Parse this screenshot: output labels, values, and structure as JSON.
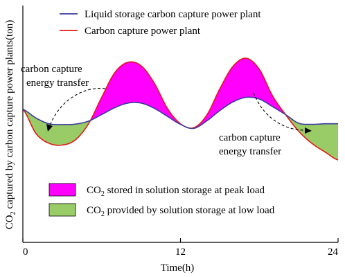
{
  "chart_data": {
    "type": "line",
    "xlabel": "Time(h)",
    "ylabel_prefix": "CO",
    "ylabel_sub": "2",
    "ylabel_rest": " captured by carbon  capture power plants(ton)",
    "xlim": [
      0,
      24
    ],
    "x_ticks": [
      0,
      12,
      24
    ],
    "x_tick_labels": [
      "0",
      "12",
      "24"
    ],
    "series": [
      {
        "name": "Liquid storage carbon capture power plant",
        "color": "#3a3aa0",
        "x": [
          0,
          1,
          2,
          3,
          4,
          5,
          6,
          7,
          8,
          9,
          10,
          11,
          12,
          13,
          14,
          15,
          16,
          17,
          18,
          19,
          20,
          21,
          22,
          23,
          24
        ],
        "y": [
          0.47,
          0.395,
          0.345,
          0.338,
          0.342,
          0.368,
          0.425,
          0.485,
          0.525,
          0.525,
          0.48,
          0.41,
          0.34,
          0.305,
          0.37,
          0.46,
          0.535,
          0.575,
          0.56,
          0.495,
          0.425,
          0.35,
          0.34,
          0.345,
          0.345
        ]
      },
      {
        "name": "Carbon capture power plant",
        "color": "#e01818",
        "x": [
          0,
          1,
          2,
          3,
          4,
          5,
          6,
          7,
          8,
          9,
          10,
          11,
          12,
          13,
          14,
          15,
          16,
          17,
          18,
          19,
          20,
          21,
          22,
          23,
          24
        ],
        "y": [
          0.47,
          0.26,
          0.175,
          0.16,
          0.205,
          0.345,
          0.575,
          0.79,
          0.88,
          0.85,
          0.7,
          0.48,
          0.345,
          0.31,
          0.42,
          0.65,
          0.845,
          0.915,
          0.82,
          0.59,
          0.425,
          0.28,
          0.175,
          0.1,
          0.03
        ]
      }
    ],
    "fill_peak": {
      "color": "#ff00ff",
      "label_prefix": "CO",
      "label_sub": "2",
      "label_rest": " stored in solution storage at peak load"
    },
    "fill_low": {
      "color": "#99cc66",
      "label_prefix": "CO",
      "label_sub": "2",
      "label_rest": " provided by solution storage at low load"
    },
    "annotations": [
      {
        "line1": "carbon capture",
        "line2": "energy transfer"
      },
      {
        "line1": "carbon capture",
        "line2": "energy transfer"
      }
    ]
  }
}
